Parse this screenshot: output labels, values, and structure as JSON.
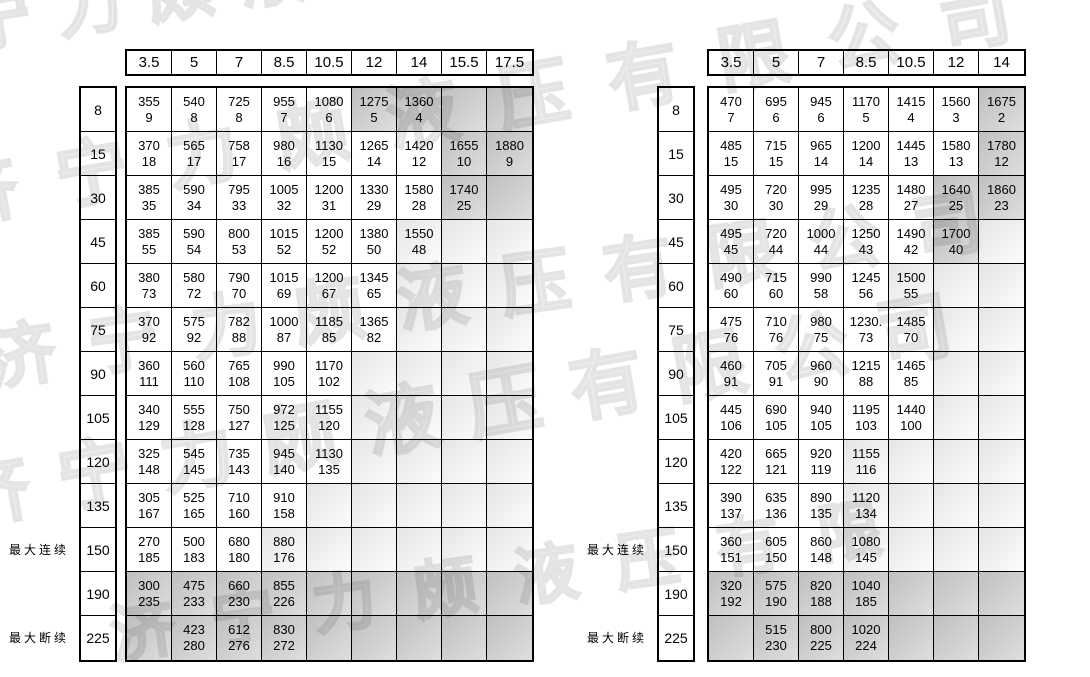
{
  "watermark": {
    "lines": [
      "宁力颇液压有限公司",
      "济宁力颇液压有限公司",
      "济宁力颇液压有限公司",
      "济宁力颇液压有限公司",
      "济宁力颇液压有限"
    ]
  },
  "left_table": {
    "columns": [
      "3.5",
      "5",
      "7",
      "8.5",
      "10.5",
      "12",
      "14",
      "15.5",
      "17.5"
    ],
    "rows": [
      {
        "label": "8",
        "cells": [
          [
            "355",
            "9",
            0
          ],
          [
            "540",
            "8",
            0
          ],
          [
            "725",
            "8",
            0
          ],
          [
            "955",
            "7",
            0
          ],
          [
            "1080",
            "6",
            0
          ],
          [
            "1275",
            "5",
            2
          ],
          [
            "1360",
            "4",
            2
          ],
          [
            "",
            "",
            2
          ],
          [
            "",
            "",
            2
          ]
        ]
      },
      {
        "label": "15",
        "cells": [
          [
            "370",
            "18",
            0
          ],
          [
            "565",
            "17",
            0
          ],
          [
            "758",
            "17",
            0
          ],
          [
            "980",
            "16",
            0
          ],
          [
            "1130",
            "15",
            0
          ],
          [
            "1265",
            "14",
            0
          ],
          [
            "1420",
            "12",
            0
          ],
          [
            "1655",
            "10",
            2
          ],
          [
            "1880",
            "9",
            2
          ]
        ]
      },
      {
        "label": "30",
        "cells": [
          [
            "385",
            "35",
            0
          ],
          [
            "590",
            "34",
            0
          ],
          [
            "795",
            "33",
            0
          ],
          [
            "1005",
            "32",
            0
          ],
          [
            "1200",
            "31",
            0
          ],
          [
            "1330",
            "29",
            0
          ],
          [
            "1580",
            "28",
            0
          ],
          [
            "1740",
            "25",
            2
          ],
          [
            "",
            "",
            2
          ]
        ]
      },
      {
        "label": "45",
        "cells": [
          [
            "385",
            "55",
            0
          ],
          [
            "590",
            "54",
            0
          ],
          [
            "800",
            "53",
            0
          ],
          [
            "1015",
            "52",
            0
          ],
          [
            "1200",
            "52",
            0
          ],
          [
            "1380",
            "50",
            0
          ],
          [
            "1550",
            "48",
            1
          ],
          [
            "",
            "",
            1
          ],
          [
            "",
            "",
            1
          ]
        ]
      },
      {
        "label": "60",
        "cells": [
          [
            "380",
            "73",
            0
          ],
          [
            "580",
            "72",
            0
          ],
          [
            "790",
            "70",
            0
          ],
          [
            "1015",
            "69",
            0
          ],
          [
            "1200",
            "67",
            0
          ],
          [
            "1345",
            "65",
            0
          ],
          [
            "",
            "",
            1
          ],
          [
            "",
            "",
            1
          ],
          [
            "",
            "",
            1
          ]
        ]
      },
      {
        "label": "75",
        "cells": [
          [
            "370",
            "92",
            0
          ],
          [
            "575",
            "92",
            0
          ],
          [
            "782",
            "88",
            0
          ],
          [
            "1000",
            "87",
            0
          ],
          [
            "1185",
            "85",
            0
          ],
          [
            "1365",
            "82",
            0
          ],
          [
            "",
            "",
            1
          ],
          [
            "",
            "",
            1
          ],
          [
            "",
            "",
            1
          ]
        ]
      },
      {
        "label": "90",
        "cells": [
          [
            "360",
            "111",
            0
          ],
          [
            "560",
            "110",
            0
          ],
          [
            "765",
            "108",
            0
          ],
          [
            "990",
            "105",
            0
          ],
          [
            "1170",
            "102",
            0
          ],
          [
            "",
            "",
            1
          ],
          [
            "",
            "",
            1
          ],
          [
            "",
            "",
            1
          ],
          [
            "",
            "",
            1
          ]
        ]
      },
      {
        "label": "105",
        "cells": [
          [
            "340",
            "129",
            0
          ],
          [
            "555",
            "128",
            0
          ],
          [
            "750",
            "127",
            0
          ],
          [
            "972",
            "125",
            0
          ],
          [
            "1155",
            "120",
            0
          ],
          [
            "",
            "",
            1
          ],
          [
            "",
            "",
            1
          ],
          [
            "",
            "",
            1
          ],
          [
            "",
            "",
            1
          ]
        ]
      },
      {
        "label": "120",
        "cells": [
          [
            "325",
            "148",
            0
          ],
          [
            "545",
            "145",
            0
          ],
          [
            "735",
            "143",
            0
          ],
          [
            "945",
            "140",
            0
          ],
          [
            "1130",
            "135",
            0
          ],
          [
            "",
            "",
            1
          ],
          [
            "",
            "",
            1
          ],
          [
            "",
            "",
            1
          ],
          [
            "",
            "",
            1
          ]
        ]
      },
      {
        "label": "135",
        "cells": [
          [
            "305",
            "167",
            0
          ],
          [
            "525",
            "165",
            0
          ],
          [
            "710",
            "160",
            0
          ],
          [
            "910",
            "158",
            0
          ],
          [
            "",
            "",
            1
          ],
          [
            "",
            "",
            1
          ],
          [
            "",
            "",
            1
          ],
          [
            "",
            "",
            1
          ],
          [
            "",
            "",
            1
          ]
        ]
      },
      {
        "label": "150",
        "cells": [
          [
            "270",
            "185",
            0
          ],
          [
            "500",
            "183",
            0
          ],
          [
            "680",
            "180",
            0
          ],
          [
            "880",
            "176",
            1
          ],
          [
            "",
            "",
            1
          ],
          [
            "",
            "",
            1
          ],
          [
            "",
            "",
            1
          ],
          [
            "",
            "",
            1
          ],
          [
            "",
            "",
            1
          ]
        ]
      },
      {
        "label": "190",
        "cells": [
          [
            "300",
            "235",
            2
          ],
          [
            "475",
            "233",
            2
          ],
          [
            "660",
            "230",
            2
          ],
          [
            "855",
            "226",
            2
          ],
          [
            "",
            "",
            2
          ],
          [
            "",
            "",
            2
          ],
          [
            "",
            "",
            2
          ],
          [
            "",
            "",
            2
          ],
          [
            "",
            "",
            2
          ]
        ]
      },
      {
        "label": "225",
        "cells": [
          [
            "",
            "",
            2
          ],
          [
            "423",
            "280",
            2
          ],
          [
            "612",
            "276",
            2
          ],
          [
            "830",
            "272",
            2
          ],
          [
            "",
            "",
            2
          ],
          [
            "",
            "",
            2
          ],
          [
            "",
            "",
            2
          ],
          [
            "",
            "",
            2
          ],
          [
            "",
            "",
            2
          ]
        ]
      }
    ],
    "annotations": [
      {
        "row": "150",
        "label": "最大连续"
      },
      {
        "row": "225",
        "label": "最大断续"
      }
    ]
  },
  "right_table": {
    "columns": [
      "3.5",
      "5",
      "7",
      "8.5",
      "10.5",
      "12",
      "14"
    ],
    "rows": [
      {
        "label": "8",
        "cells": [
          [
            "470",
            "7",
            0
          ],
          [
            "695",
            "6",
            0
          ],
          [
            "945",
            "6",
            0
          ],
          [
            "1170",
            "5",
            0
          ],
          [
            "1415",
            "4",
            0
          ],
          [
            "1560",
            "3",
            0
          ],
          [
            "1675",
            "2",
            2
          ]
        ]
      },
      {
        "label": "15",
        "cells": [
          [
            "485",
            "15",
            0
          ],
          [
            "715",
            "15",
            0
          ],
          [
            "965",
            "14",
            0
          ],
          [
            "1200",
            "14",
            0
          ],
          [
            "1445",
            "13",
            0
          ],
          [
            "1580",
            "13",
            0
          ],
          [
            "1780",
            "12",
            2
          ]
        ]
      },
      {
        "label": "30",
        "cells": [
          [
            "495",
            "30",
            0
          ],
          [
            "720",
            "30",
            0
          ],
          [
            "995",
            "29",
            0
          ],
          [
            "1235",
            "28",
            0
          ],
          [
            "1480",
            "27",
            0
          ],
          [
            "1640",
            "25",
            2
          ],
          [
            "1860",
            "23",
            2
          ]
        ]
      },
      {
        "label": "45",
        "cells": [
          [
            "495",
            "45",
            0
          ],
          [
            "720",
            "44",
            0
          ],
          [
            "1000",
            "44",
            0
          ],
          [
            "1250",
            "43",
            0
          ],
          [
            "1490",
            "42",
            0
          ],
          [
            "1700",
            "40",
            2
          ],
          [
            "",
            "",
            1
          ]
        ]
      },
      {
        "label": "60",
        "cells": [
          [
            "490",
            "60",
            0
          ],
          [
            "715",
            "60",
            0
          ],
          [
            "990",
            "58",
            0
          ],
          [
            "1245",
            "56",
            0
          ],
          [
            "1500",
            "55",
            1
          ],
          [
            "",
            "",
            1
          ],
          [
            "",
            "",
            1
          ]
        ]
      },
      {
        "label": "75",
        "cells": [
          [
            "475",
            "76",
            0
          ],
          [
            "710",
            "76",
            0
          ],
          [
            "980",
            "75",
            0
          ],
          [
            "1230.",
            "73",
            0
          ],
          [
            "1485",
            "70",
            0
          ],
          [
            "",
            "",
            1
          ],
          [
            "",
            "",
            1
          ]
        ]
      },
      {
        "label": "90",
        "cells": [
          [
            "460",
            "91",
            0
          ],
          [
            "705",
            "91",
            0
          ],
          [
            "960",
            "90",
            0
          ],
          [
            "1215",
            "88",
            0
          ],
          [
            "1465",
            "85",
            0
          ],
          [
            "",
            "",
            1
          ],
          [
            "",
            "",
            1
          ]
        ]
      },
      {
        "label": "105",
        "cells": [
          [
            "445",
            "106",
            0
          ],
          [
            "690",
            "105",
            0
          ],
          [
            "940",
            "105",
            0
          ],
          [
            "1195",
            "103",
            0
          ],
          [
            "1440",
            "100",
            0
          ],
          [
            "",
            "",
            1
          ],
          [
            "",
            "",
            1
          ]
        ]
      },
      {
        "label": "120",
        "cells": [
          [
            "420",
            "122",
            0
          ],
          [
            "665",
            "121",
            0
          ],
          [
            "920",
            "119",
            0
          ],
          [
            "1155",
            "116",
            1
          ],
          [
            "",
            "",
            1
          ],
          [
            "",
            "",
            1
          ],
          [
            "",
            "",
            1
          ]
        ]
      },
      {
        "label": "135",
        "cells": [
          [
            "390",
            "137",
            0
          ],
          [
            "635",
            "136",
            0
          ],
          [
            "890",
            "135",
            0
          ],
          [
            "1120",
            "134",
            1
          ],
          [
            "",
            "",
            1
          ],
          [
            "",
            "",
            1
          ],
          [
            "",
            "",
            1
          ]
        ]
      },
      {
        "label": "150",
        "cells": [
          [
            "360",
            "151",
            0
          ],
          [
            "605",
            "150",
            0
          ],
          [
            "860",
            "148",
            0
          ],
          [
            "1080",
            "145",
            1
          ],
          [
            "",
            "",
            1
          ],
          [
            "",
            "",
            1
          ],
          [
            "",
            "",
            1
          ]
        ]
      },
      {
        "label": "190",
        "cells": [
          [
            "320",
            "192",
            2
          ],
          [
            "575",
            "190",
            2
          ],
          [
            "820",
            "188",
            2
          ],
          [
            "1040",
            "185",
            2
          ],
          [
            "",
            "",
            2
          ],
          [
            "",
            "",
            2
          ],
          [
            "",
            "",
            2
          ]
        ]
      },
      {
        "label": "225",
        "cells": [
          [
            "",
            "",
            2
          ],
          [
            "515",
            "230",
            2
          ],
          [
            "800",
            "225",
            2
          ],
          [
            "1020",
            "224",
            2
          ],
          [
            "",
            "",
            2
          ],
          [
            "",
            "",
            2
          ],
          [
            "",
            "",
            2
          ]
        ]
      }
    ],
    "annotations": [
      {
        "row": "150",
        "label": "最大连续"
      },
      {
        "row": "225",
        "label": "最大断续"
      }
    ]
  }
}
